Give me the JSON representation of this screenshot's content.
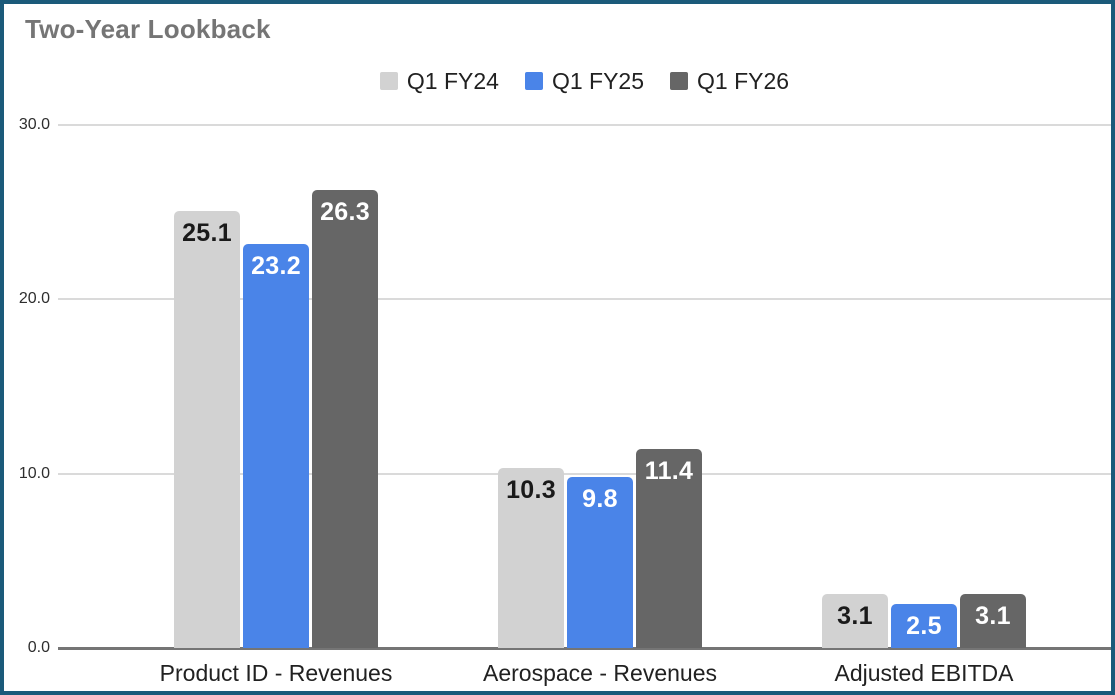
{
  "page": {
    "title": "Two-Year Lookback"
  },
  "colors": {
    "card_border": "#1b5a7a",
    "card_background": "#ffffff",
    "grid_line": "#dadada",
    "axis_line": "#757575",
    "title_text": "#757575",
    "axis_tick_text": "#2e2e2e",
    "category_text": "#212121",
    "legend_text": "#212121"
  },
  "chart_data": {
    "type": "bar",
    "title": "Two-Year Lookback",
    "categories": [
      "Product ID - Revenues",
      "Aerospace - Revenues",
      "Adjusted EBITDA"
    ],
    "series": [
      {
        "name": "Q1 FY24",
        "color": "#d2d2d2",
        "label_color": "#1a1a1a",
        "values": [
          25.1,
          10.3,
          3.1
        ],
        "labels": [
          "25.1",
          "10.3",
          "3.1"
        ]
      },
      {
        "name": "Q1 FY25",
        "color": "#4a84e8",
        "label_color": "#ffffff",
        "values": [
          23.2,
          9.8,
          2.5
        ],
        "labels": [
          "23.2",
          "9.8",
          "2.5"
        ]
      },
      {
        "name": "Q1 FY26",
        "color": "#666666",
        "label_color": "#ffffff",
        "values": [
          26.3,
          11.4,
          3.1
        ],
        "labels": [
          "26.3",
          "11.4",
          "3.1"
        ]
      }
    ],
    "xlabel": "",
    "ylabel": "",
    "ylim": [
      0,
      30
    ],
    "y_ticks": [
      {
        "value": 0,
        "label": "0.0"
      },
      {
        "value": 10,
        "label": "10.0"
      },
      {
        "value": 20,
        "label": "20.0"
      },
      {
        "value": 30,
        "label": "30.0"
      }
    ],
    "grid": true,
    "legend_position": "top-center"
  }
}
